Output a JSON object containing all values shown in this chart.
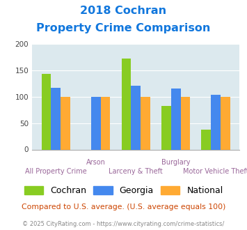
{
  "title_line1": "2018 Cochran",
  "title_line2": "Property Crime Comparison",
  "categories": [
    "All Property Crime",
    "Arson",
    "Larceny & Theft",
    "Burglary",
    "Motor Vehicle Theft"
  ],
  "category_labels_top": [
    "",
    "Arson",
    "",
    "Burglary",
    ""
  ],
  "category_labels_bottom": [
    "All Property Crime",
    "",
    "Larceny & Theft",
    "",
    "Motor Vehicle Theft"
  ],
  "cochran": [
    143,
    0,
    172,
    82,
    37
  ],
  "georgia": [
    117,
    100,
    120,
    115,
    103
  ],
  "national": [
    100,
    100,
    100,
    100,
    100
  ],
  "cochran_color": "#88cc22",
  "georgia_color": "#4488ee",
  "national_color": "#ffaa33",
  "ylim": [
    0,
    200
  ],
  "yticks": [
    0,
    50,
    100,
    150,
    200
  ],
  "plot_bg_color": "#dce9ee",
  "fig_bg_color": "#ffffff",
  "title_color": "#1177dd",
  "xlabel_top_color": "#996699",
  "xlabel_bot_color": "#996699",
  "footer_text": "Compared to U.S. average. (U.S. average equals 100)",
  "footer_color": "#cc4400",
  "copyright_text": "© 2025 CityRating.com - https://www.cityrating.com/crime-statistics/",
  "copyright_color": "#888888",
  "legend_labels": [
    "Cochran",
    "Georgia",
    "National"
  ],
  "grid_color": "#ffffff"
}
